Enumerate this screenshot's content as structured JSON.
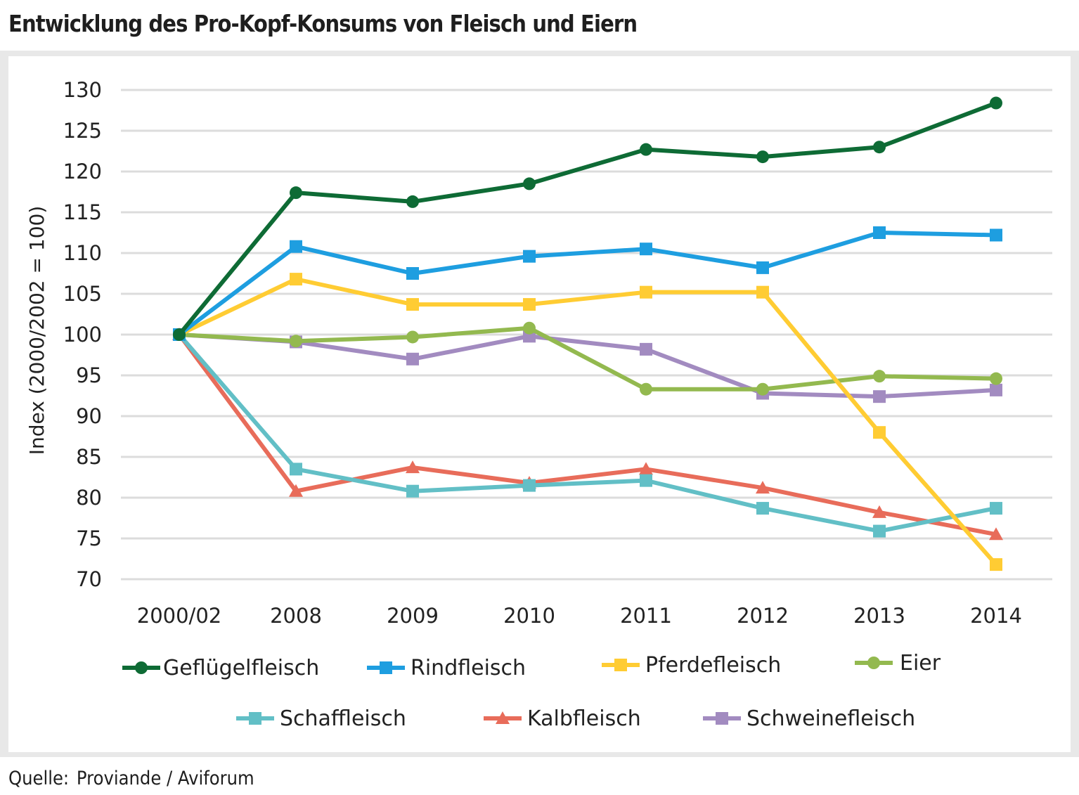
{
  "title": "Entwicklung des Pro-Kopf-Konsums von Fleisch und Eiern",
  "source": {
    "label": "Quelle:",
    "value": "Proviande / Aviforum"
  },
  "chart_data": {
    "type": "line",
    "ylabel": "Index (2000/2002 = 100)",
    "xlabel": "",
    "ylim": [
      70,
      130
    ],
    "yticks": [
      70,
      75,
      80,
      85,
      90,
      95,
      100,
      105,
      110,
      115,
      120,
      125,
      130
    ],
    "categories": [
      "2000/02",
      "2008",
      "2009",
      "2010",
      "2011",
      "2012",
      "2013",
      "2014"
    ],
    "grid": "horizontal",
    "legend_position": "bottom",
    "series": [
      {
        "name": "Geflügelfleisch",
        "color": "#0e6b35",
        "marker": "circle",
        "values": [
          100,
          117.4,
          116.3,
          118.5,
          122.7,
          121.8,
          123.0,
          128.4
        ]
      },
      {
        "name": "Rindfleisch",
        "color": "#1e9ee0",
        "marker": "square",
        "values": [
          100,
          110.8,
          107.5,
          109.6,
          110.5,
          108.2,
          112.5,
          112.2
        ]
      },
      {
        "name": "Pferdefleisch",
        "color": "#ffcc33",
        "marker": "square",
        "values": [
          100,
          106.8,
          103.7,
          103.7,
          105.2,
          105.2,
          88.0,
          71.8
        ]
      },
      {
        "name": "Eier",
        "color": "#93b94f",
        "marker": "circle",
        "values": [
          100,
          99.2,
          99.7,
          100.8,
          93.3,
          93.3,
          94.9,
          94.6
        ]
      },
      {
        "name": "Schaffleisch",
        "color": "#62bfc6",
        "marker": "square",
        "values": [
          100,
          83.5,
          80.8,
          81.5,
          82.1,
          78.7,
          75.9,
          78.7
        ]
      },
      {
        "name": "Kalbfleisch",
        "color": "#e86c5a",
        "marker": "triangle",
        "values": [
          100,
          80.8,
          83.7,
          81.8,
          83.5,
          81.2,
          78.2,
          75.5
        ]
      },
      {
        "name": "Schweinefleisch",
        "color": "#a28bc0",
        "marker": "square",
        "values": [
          100,
          99.1,
          97.0,
          99.8,
          98.2,
          92.8,
          92.4,
          93.2
        ]
      }
    ]
  }
}
